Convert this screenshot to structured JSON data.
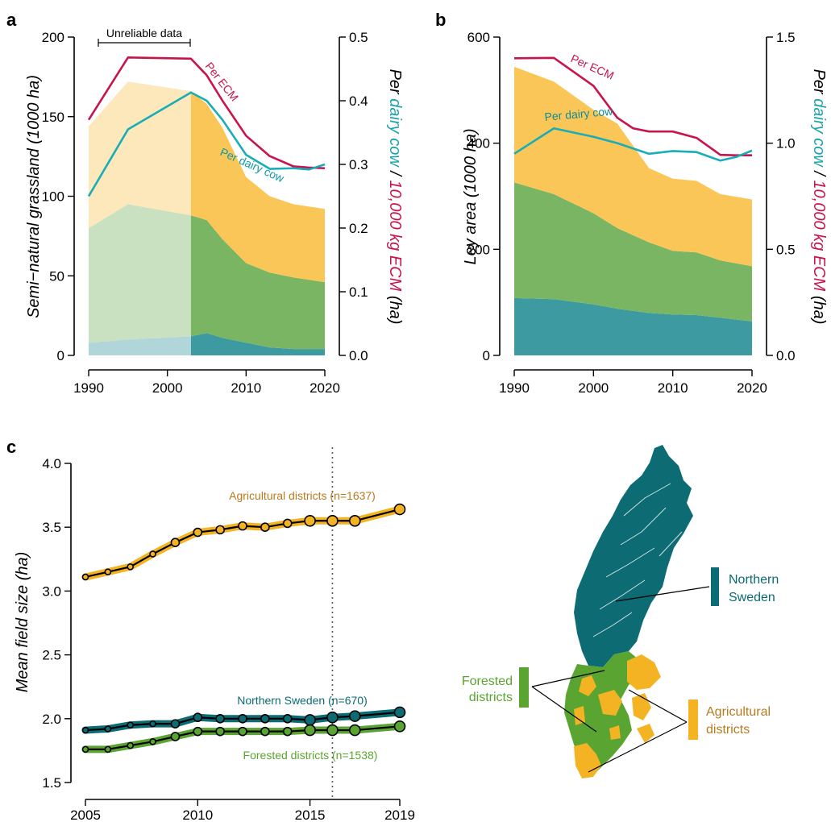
{
  "colors": {
    "teal": "#3d9aa0",
    "green": "#79b562",
    "orange": "#fbc658",
    "line_ecm": "#c8144a",
    "line_cow": "#19adb8",
    "ns_dark": "#0c6b73",
    "forest": "#5aa531",
    "agri": "#f3b323",
    "agri_text": "#b87a1e",
    "forest_text": "#5aa531",
    "ns_text": "#0c6b73"
  },
  "chart_data": [
    {
      "panel": "a",
      "type": "area",
      "ylabel": "Semi−natural grassland (1000 ha)",
      "ylabel2_parts": [
        "Per ",
        "dairy cow",
        " / ",
        "10,000 kg ECM",
        " (ha)"
      ],
      "ylim": [
        0,
        200
      ],
      "ylim2": [
        0,
        0.5
      ],
      "yticks": [
        0,
        50,
        100,
        150,
        200
      ],
      "yticks2": [
        "0.0",
        "0.1",
        "0.2",
        "0.3",
        "0.4",
        "0.5"
      ],
      "xticks": [
        1990,
        2000,
        2010,
        2020
      ],
      "xlim": [
        1990,
        2020
      ],
      "unreliable_until": 2003,
      "unreliable_label": "Unreliable data",
      "x": [
        1990,
        1995,
        2003,
        2005,
        2007,
        2010,
        2013,
        2016,
        2020
      ],
      "stack": [
        {
          "values": [
            8,
            10,
            12,
            14,
            11,
            8,
            5,
            4,
            4
          ]
        },
        {
          "values": [
            72,
            85,
            76,
            71,
            62,
            50,
            47,
            45,
            42
          ]
        },
        {
          "values": [
            64,
            77,
            78,
            73,
            70,
            54,
            48,
            46,
            46
          ]
        }
      ],
      "lines": [
        {
          "name": "Per ECM",
          "x": [
            1990,
            1995,
            2003,
            2005,
            2007,
            2010,
            2013,
            2016,
            2018,
            2020
          ],
          "values": [
            0.37,
            0.468,
            0.466,
            0.44,
            0.4,
            0.345,
            0.313,
            0.297,
            0.295,
            0.294
          ]
        },
        {
          "name": "Per dairy cow",
          "x": [
            1990,
            1995,
            2003,
            2005,
            2007,
            2010,
            2013,
            2016,
            2018,
            2020
          ],
          "values": [
            0.25,
            0.355,
            0.413,
            0.4,
            0.37,
            0.315,
            0.293,
            0.294,
            0.292,
            0.3
          ]
        }
      ]
    },
    {
      "panel": "b",
      "type": "area",
      "ylabel": "Ley area (1000 ha)",
      "ylabel2_parts": [
        "Per ",
        "dairy cow",
        " / ",
        "10,000 kg ECM",
        " (ha)"
      ],
      "ylim": [
        0,
        600
      ],
      "ylim2": [
        0,
        1.5
      ],
      "yticks": [
        0,
        200,
        400,
        600
      ],
      "yticks2": [
        "0.0",
        "0.5",
        "1.0",
        "1.5"
      ],
      "xticks": [
        1990,
        2000,
        2010,
        2020
      ],
      "xlim": [
        1990,
        2020
      ],
      "x": [
        1990,
        1995,
        2000,
        2003,
        2007,
        2010,
        2013,
        2016,
        2020
      ],
      "stack": [
        {
          "values": [
            108,
            106,
            96,
            88,
            80,
            77,
            76,
            71,
            64
          ]
        },
        {
          "values": [
            218,
            198,
            172,
            152,
            133,
            120,
            118,
            108,
            104
          ]
        },
        {
          "values": [
            218,
            212,
            195,
            197,
            140,
            136,
            135,
            125,
            126
          ]
        }
      ],
      "lines": [
        {
          "name": "Per ECM",
          "x": [
            1990,
            1995,
            2000,
            2003,
            2005,
            2007,
            2010,
            2013,
            2016,
            2018,
            2020
          ],
          "values": [
            1.4,
            1.402,
            1.27,
            1.12,
            1.07,
            1.055,
            1.055,
            1.025,
            0.945,
            0.943,
            0.943
          ]
        },
        {
          "name": "Per dairy cow",
          "x": [
            1990,
            1995,
            2000,
            2003,
            2007,
            2010,
            2013,
            2016,
            2018,
            2020
          ],
          "values": [
            0.95,
            1.07,
            1.03,
            1.0,
            0.95,
            0.963,
            0.958,
            0.918,
            0.935,
            0.965
          ]
        }
      ]
    },
    {
      "panel": "c",
      "type": "line",
      "ylabel": "Mean field size (ha)",
      "ylim": [
        1.5,
        4.0
      ],
      "yticks": [
        "1.5",
        "2.0",
        "2.5",
        "3.0",
        "3.5",
        "4.0"
      ],
      "xticks": [
        2005,
        2010,
        2015,
        2019
      ],
      "xlim": [
        2005,
        2019
      ],
      "vline": 2016,
      "x": [
        2005,
        2006,
        2007,
        2008,
        2009,
        2010,
        2011,
        2012,
        2013,
        2014,
        2015,
        2016,
        2017,
        2019
      ],
      "series": [
        {
          "name": "Agricultural districts",
          "n_label": "(n=1637)",
          "values": [
            3.11,
            3.15,
            3.19,
            3.29,
            3.38,
            3.46,
            3.48,
            3.51,
            3.5,
            3.53,
            3.55,
            3.55,
            3.55,
            3.64
          ]
        },
        {
          "name": "Northern Sweden",
          "n_label": "(n=670)",
          "values": [
            1.91,
            1.92,
            1.95,
            1.96,
            1.96,
            2.01,
            2.0,
            2.0,
            2.0,
            2.0,
            1.99,
            2.01,
            2.02,
            2.05
          ]
        },
        {
          "name": "Forested districts",
          "n_label": "(n=1538)",
          "values": [
            1.76,
            1.76,
            1.79,
            1.82,
            1.86,
            1.9,
            1.9,
            1.9,
            1.9,
            1.9,
            1.91,
            1.91,
            1.91,
            1.94
          ]
        }
      ]
    }
  ],
  "panels": {
    "a": "a",
    "b": "b",
    "c": "c"
  },
  "map": {
    "northern_label_1": "Northern",
    "northern_label_2": "Sweden",
    "forested_label_1": "Forested",
    "forested_label_2": "districts",
    "agri_label_1": "Agricultural",
    "agri_label_2": "districts"
  }
}
